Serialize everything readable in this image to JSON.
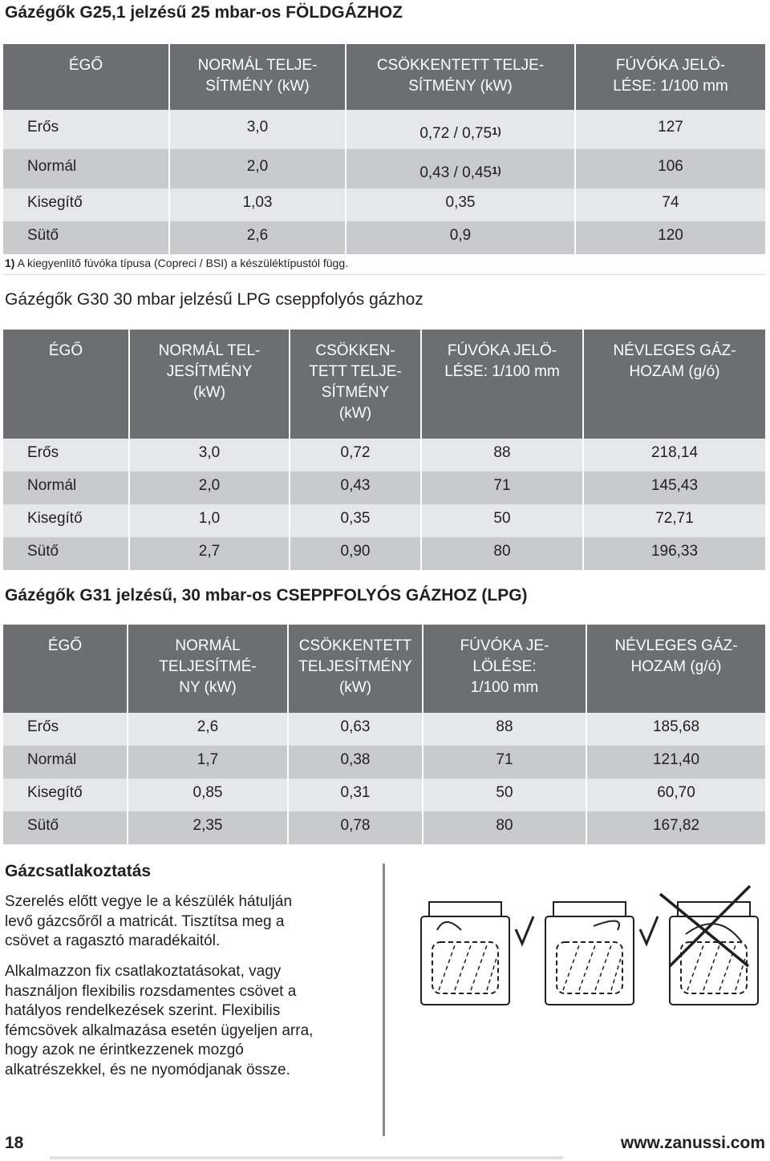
{
  "sections": [
    {
      "title": "Gázégők G25,1 jelzésű 25 mbar-os FÖLDGÁZHOZ",
      "table": {
        "header": [
          [
            "ÉGŐ"
          ],
          [
            "NORMÁL TELJE-",
            "SÍTMÉNY (kW)"
          ],
          [
            "CSÖKKENTETT TELJE-",
            "SÍTMÉNY (kW)"
          ],
          [
            "FÚVÓKA JELÖ-",
            "LÉSE: 1/100 mm"
          ]
        ],
        "rows": [
          [
            "Erős",
            "3,0",
            {
              "text": "0,72 / 0,75",
              "sup": "1)"
            },
            "127"
          ],
          [
            "Normál",
            "2,0",
            {
              "text": "0,43 / 0,45",
              "sup": "1)"
            },
            "106"
          ],
          [
            "Kisegítő",
            "1,03",
            "0,35",
            "74"
          ],
          [
            "Sütő",
            "2,6",
            "0,9",
            "120"
          ]
        ]
      },
      "footnote": {
        "marker": "1)",
        "text": "A kiegyenlítő fúvóka típusa (Copreci / BSI) a készüléktípustól függ."
      }
    },
    {
      "title": "Gázégők G30 30 mbar jelzésű LPG cseppfolyós gázhoz",
      "table": {
        "header": [
          [
            "ÉGŐ"
          ],
          [
            "NORMÁL TEL-",
            "JESÍTMÉNY",
            "(kW)"
          ],
          [
            "CSÖKKEN-",
            "TETT TELJE-",
            "SÍTMÉNY",
            "(kW)"
          ],
          [
            "FÚVÓKA JELÖ-",
            "LÉSE: 1/100 mm"
          ],
          [
            "NÉVLEGES GÁZ-",
            "HOZAM (g/ó)"
          ]
        ],
        "rows": [
          [
            "Erős",
            "3,0",
            "0,72",
            "88",
            "218,14"
          ],
          [
            "Normál",
            "2,0",
            "0,43",
            "71",
            "145,43"
          ],
          [
            "Kisegítő",
            "1,0",
            "0,35",
            "50",
            "72,71"
          ],
          [
            "Sütő",
            "2,7",
            "0,90",
            "80",
            "196,33"
          ]
        ]
      }
    },
    {
      "title": "Gázégők G31 jelzésű, 30 mbar-os CSEPPFOLYÓS GÁZHOZ (LPG)",
      "table": {
        "header": [
          [
            "ÉGŐ"
          ],
          [
            "NORMÁL",
            "TELJESÍTMÉ-",
            "NY (kW)"
          ],
          [
            "CSÖKKENTETT",
            "TELJESÍTMÉNY",
            "(kW)"
          ],
          [
            "FÚVÓKA JE-",
            "LÖLÉSE:",
            "1/100 mm"
          ],
          [
            "NÉVLEGES GÁZ-",
            "HOZAM (g/ó)"
          ]
        ],
        "rows": [
          [
            "Erős",
            "2,6",
            "0,63",
            "88",
            "185,68"
          ],
          [
            "Normál",
            "1,7",
            "0,38",
            "71",
            "121,40"
          ],
          [
            "Kisegítő",
            "0,85",
            "0,31",
            "50",
            "60,70"
          ],
          [
            "Sütő",
            "2,35",
            "0,78",
            "80",
            "167,82"
          ]
        ]
      }
    }
  ],
  "connection": {
    "heading": "Gázcsatlakoztatás",
    "paragraphs": [
      [
        "Szerelés előtt vegye le a készülék hátulján",
        "levő gázcsőről a matricát. Tisztítsa meg a",
        "csövet a ragasztó maradékaitól."
      ],
      [
        "Alkalmazzon fix csatlakoztatásokat, vagy",
        "használjon flexibilis rozsdamentes csövet a",
        "hatályos rendelkezések szerint. Flexibilis",
        "fémcsövek alkalmazása esetén ügyeljen arra,",
        "hogy azok ne érintkezzenek mozgó",
        "alkatrészekkel, és ne nyomódjanak össze."
      ]
    ]
  },
  "footer": {
    "page": "18",
    "website": "www.zanussi.com"
  }
}
